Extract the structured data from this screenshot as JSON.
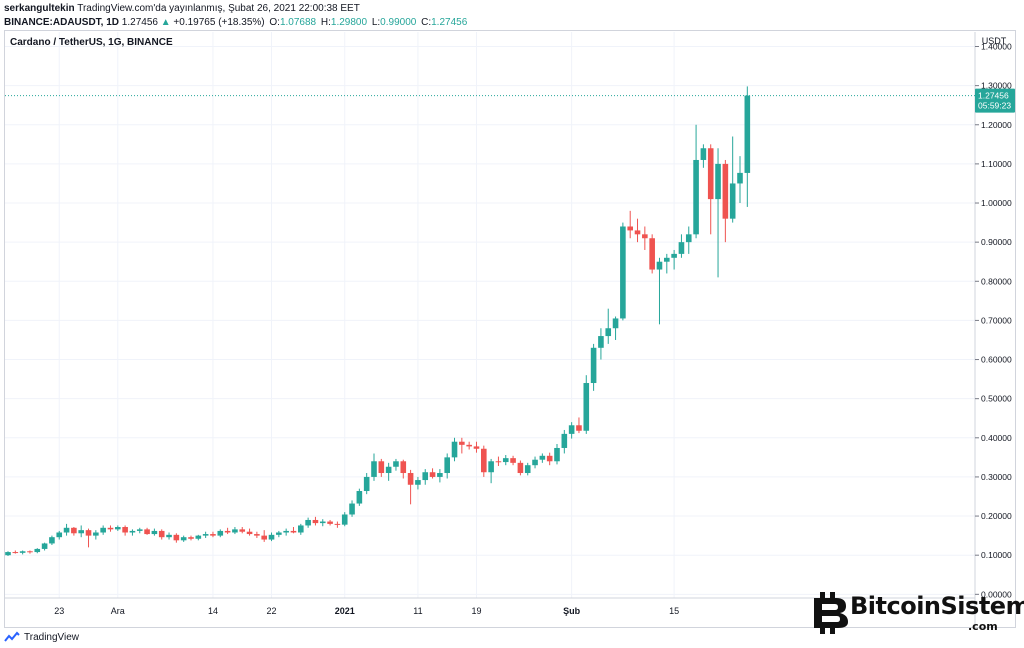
{
  "header": {
    "author": "serkangultekin",
    "published": "TradingView.com'da yayınlanmış, Şubat 26, 2021 22:00:38 EET",
    "symbol": "BINANCE:ADAUSDT, 1D",
    "last": "1.27456",
    "change_arrow": "▲",
    "change": "+0.19765 (+18.35%)",
    "o_label": "O:",
    "o_value": "1.07688",
    "h_label": "H:",
    "h_value": "1.29800",
    "l_label": "L:",
    "l_value": "0.99000",
    "c_label": "C:",
    "c_value": "1.27456"
  },
  "chart_title": "Cardano / TetherUS, 1G, BINANCE",
  "price_tag": {
    "price": "1.27456",
    "countdown": "05:59:23"
  },
  "footer": {
    "brand": "TradingView"
  },
  "watermark": {
    "name": "BitcoinSistemi",
    "suffix": ".com"
  },
  "colors": {
    "up": "#26a69a",
    "down": "#ef5350",
    "grid": "#f0f3fa",
    "axis_text": "#131722"
  },
  "chart_data": {
    "type": "candlestick",
    "title": "Cardano / TetherUS, 1G, BINANCE",
    "y_unit": "USDT",
    "ylim": [
      0,
      1.45
    ],
    "y_ticks": [
      "1.40000",
      "1.30000",
      "1.20000",
      "1.10000",
      "1.00000",
      "0.90000",
      "0.80000",
      "0.70000",
      "0.60000",
      "0.50000",
      "0.40000",
      "0.30000",
      "0.20000",
      "0.10000",
      "0.00000"
    ],
    "y_tick_values": [
      1.4,
      1.3,
      1.2,
      1.1,
      1.0,
      0.9,
      0.8,
      0.7,
      0.6,
      0.5,
      0.4,
      0.3,
      0.2,
      0.1,
      0.0
    ],
    "x_ticks": [
      {
        "label": "23",
        "index": 7
      },
      {
        "label": "Ara",
        "index": 15
      },
      {
        "label": "14",
        "index": 28
      },
      {
        "label": "22",
        "index": 36
      },
      {
        "label": "2021",
        "index": 46
      },
      {
        "label": "11",
        "index": 56
      },
      {
        "label": "19",
        "index": 64
      },
      {
        "label": "Şub",
        "index": 77
      },
      {
        "label": "15",
        "index": 91
      }
    ],
    "grid": true,
    "candles": [
      [
        0.1,
        0.11,
        0.098,
        0.108
      ],
      [
        0.108,
        0.112,
        0.104,
        0.106
      ],
      [
        0.106,
        0.112,
        0.102,
        0.11
      ],
      [
        0.11,
        0.112,
        0.104,
        0.108
      ],
      [
        0.108,
        0.118,
        0.105,
        0.116
      ],
      [
        0.116,
        0.132,
        0.112,
        0.13
      ],
      [
        0.13,
        0.15,
        0.126,
        0.146
      ],
      [
        0.146,
        0.162,
        0.14,
        0.158
      ],
      [
        0.158,
        0.18,
        0.15,
        0.17
      ],
      [
        0.17,
        0.172,
        0.15,
        0.156
      ],
      [
        0.156,
        0.176,
        0.146,
        0.164
      ],
      [
        0.164,
        0.168,
        0.12,
        0.15
      ],
      [
        0.15,
        0.164,
        0.14,
        0.158
      ],
      [
        0.158,
        0.176,
        0.152,
        0.17
      ],
      [
        0.17,
        0.176,
        0.16,
        0.166
      ],
      [
        0.166,
        0.176,
        0.162,
        0.172
      ],
      [
        0.172,
        0.176,
        0.15,
        0.158
      ],
      [
        0.158,
        0.166,
        0.15,
        0.162
      ],
      [
        0.162,
        0.17,
        0.156,
        0.166
      ],
      [
        0.166,
        0.17,
        0.152,
        0.154
      ],
      [
        0.154,
        0.168,
        0.15,
        0.162
      ],
      [
        0.162,
        0.166,
        0.14,
        0.146
      ],
      [
        0.146,
        0.158,
        0.14,
        0.152
      ],
      [
        0.152,
        0.156,
        0.132,
        0.138
      ],
      [
        0.138,
        0.15,
        0.134,
        0.146
      ],
      [
        0.146,
        0.15,
        0.138,
        0.142
      ],
      [
        0.142,
        0.152,
        0.138,
        0.15
      ],
      [
        0.15,
        0.16,
        0.144,
        0.154
      ],
      [
        0.154,
        0.16,
        0.146,
        0.15
      ],
      [
        0.15,
        0.166,
        0.146,
        0.162
      ],
      [
        0.162,
        0.17,
        0.154,
        0.158
      ],
      [
        0.158,
        0.172,
        0.154,
        0.166
      ],
      [
        0.166,
        0.172,
        0.156,
        0.16
      ],
      [
        0.16,
        0.168,
        0.15,
        0.154
      ],
      [
        0.154,
        0.16,
        0.144,
        0.15
      ],
      [
        0.15,
        0.164,
        0.134,
        0.14
      ],
      [
        0.14,
        0.158,
        0.136,
        0.152
      ],
      [
        0.152,
        0.162,
        0.146,
        0.158
      ],
      [
        0.158,
        0.168,
        0.15,
        0.162
      ],
      [
        0.162,
        0.172,
        0.156,
        0.158
      ],
      [
        0.158,
        0.18,
        0.152,
        0.176
      ],
      [
        0.176,
        0.196,
        0.17,
        0.19
      ],
      [
        0.19,
        0.198,
        0.176,
        0.182
      ],
      [
        0.182,
        0.192,
        0.174,
        0.186
      ],
      [
        0.186,
        0.19,
        0.176,
        0.18
      ],
      [
        0.18,
        0.186,
        0.17,
        0.178
      ],
      [
        0.178,
        0.21,
        0.174,
        0.204
      ],
      [
        0.204,
        0.24,
        0.198,
        0.232
      ],
      [
        0.232,
        0.27,
        0.226,
        0.264
      ],
      [
        0.264,
        0.31,
        0.256,
        0.3
      ],
      [
        0.3,
        0.36,
        0.29,
        0.34
      ],
      [
        0.34,
        0.346,
        0.3,
        0.31
      ],
      [
        0.31,
        0.336,
        0.29,
        0.326
      ],
      [
        0.326,
        0.346,
        0.316,
        0.34
      ],
      [
        0.34,
        0.344,
        0.296,
        0.31
      ],
      [
        0.31,
        0.318,
        0.23,
        0.28
      ],
      [
        0.28,
        0.3,
        0.268,
        0.292
      ],
      [
        0.292,
        0.32,
        0.28,
        0.312
      ],
      [
        0.312,
        0.322,
        0.296,
        0.3
      ],
      [
        0.3,
        0.32,
        0.286,
        0.31
      ],
      [
        0.31,
        0.36,
        0.296,
        0.35
      ],
      [
        0.35,
        0.4,
        0.34,
        0.39
      ],
      [
        0.39,
        0.4,
        0.36,
        0.382
      ],
      [
        0.382,
        0.39,
        0.37,
        0.378
      ],
      [
        0.378,
        0.39,
        0.362,
        0.372
      ],
      [
        0.372,
        0.38,
        0.3,
        0.312
      ],
      [
        0.312,
        0.346,
        0.284,
        0.34
      ],
      [
        0.34,
        0.352,
        0.328,
        0.338
      ],
      [
        0.338,
        0.356,
        0.33,
        0.348
      ],
      [
        0.348,
        0.354,
        0.33,
        0.336
      ],
      [
        0.336,
        0.342,
        0.304,
        0.31
      ],
      [
        0.31,
        0.336,
        0.304,
        0.33
      ],
      [
        0.33,
        0.352,
        0.322,
        0.344
      ],
      [
        0.344,
        0.36,
        0.336,
        0.354
      ],
      [
        0.354,
        0.362,
        0.33,
        0.34
      ],
      [
        0.34,
        0.384,
        0.332,
        0.374
      ],
      [
        0.374,
        0.42,
        0.36,
        0.41
      ],
      [
        0.41,
        0.44,
        0.398,
        0.432
      ],
      [
        0.432,
        0.452,
        0.412,
        0.418
      ],
      [
        0.418,
        0.56,
        0.41,
        0.54
      ],
      [
        0.54,
        0.64,
        0.52,
        0.63
      ],
      [
        0.63,
        0.68,
        0.6,
        0.66
      ],
      [
        0.66,
        0.73,
        0.64,
        0.68
      ],
      [
        0.68,
        0.71,
        0.65,
        0.705
      ],
      [
        0.705,
        0.95,
        0.7,
        0.94
      ],
      [
        0.94,
        0.98,
        0.91,
        0.93
      ],
      [
        0.93,
        0.96,
        0.9,
        0.92
      ],
      [
        0.92,
        0.94,
        0.88,
        0.91
      ],
      [
        0.91,
        0.92,
        0.82,
        0.83
      ],
      [
        0.83,
        0.86,
        0.69,
        0.85
      ],
      [
        0.85,
        0.87,
        0.82,
        0.86
      ],
      [
        0.86,
        0.88,
        0.83,
        0.87
      ],
      [
        0.87,
        0.92,
        0.86,
        0.9
      ],
      [
        0.9,
        0.94,
        0.87,
        0.92
      ],
      [
        0.92,
        1.2,
        0.91,
        1.11
      ],
      [
        1.11,
        1.15,
        1.09,
        1.14
      ],
      [
        1.14,
        1.15,
        0.92,
        1.01
      ],
      [
        1.01,
        1.14,
        0.81,
        1.1
      ],
      [
        1.1,
        1.11,
        0.9,
        0.96
      ],
      [
        0.96,
        1.17,
        0.95,
        1.05
      ],
      [
        1.05,
        1.12,
        1.0,
        1.077
      ],
      [
        1.07688,
        1.298,
        0.99,
        1.27456
      ]
    ]
  }
}
